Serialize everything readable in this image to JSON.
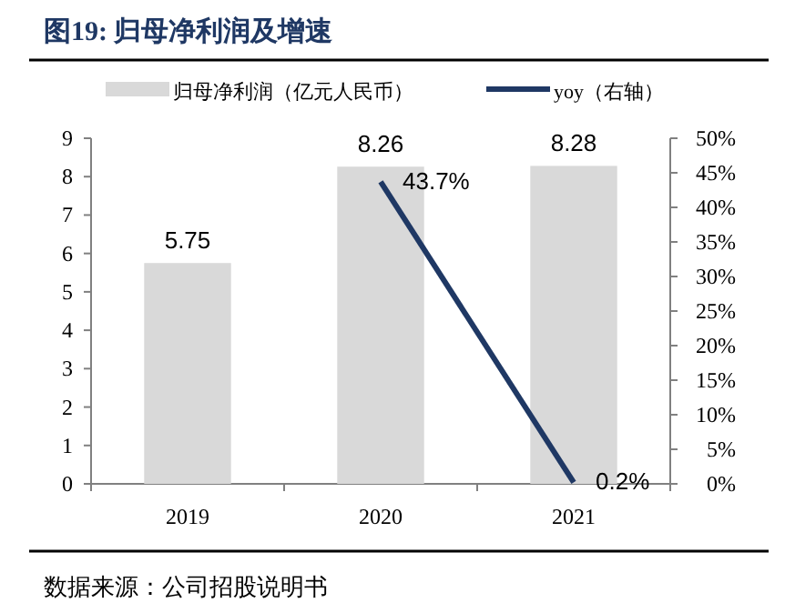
{
  "chart_data": {
    "type": "bar",
    "title": "图19:  归母净利润及增速",
    "categories": [
      "2019",
      "2020",
      "2021"
    ],
    "series": [
      {
        "name": "归母净利润（亿元人民币）",
        "color": "#d9d9d9",
        "values": [
          5.75,
          8.26,
          8.28
        ],
        "value_labels": [
          "5.75",
          "8.26",
          "8.28"
        ]
      },
      {
        "name": "yoy（右轴）",
        "type": "line",
        "axis": "y2",
        "color": "#1f3864",
        "values": [
          null,
          43.7,
          0.2
        ],
        "value_labels": [
          null,
          "43.7%",
          "0.2%"
        ]
      }
    ],
    "ylim": [
      0,
      9
    ],
    "yticks": [
      0,
      1,
      2,
      3,
      4,
      5,
      6,
      7,
      8,
      9
    ],
    "y2lim": [
      0,
      50
    ],
    "y2ticks": [
      {
        "value": 0,
        "label": "0%"
      },
      {
        "value": 5,
        "label": "5%"
      },
      {
        "value": 10,
        "label": "10%"
      },
      {
        "value": 15,
        "label": "15%"
      },
      {
        "value": 20,
        "label": "20%"
      },
      {
        "value": 25,
        "label": "25%"
      },
      {
        "value": 30,
        "label": "30%"
      },
      {
        "value": 35,
        "label": "35%"
      },
      {
        "value": 40,
        "label": "40%"
      },
      {
        "value": 45,
        "label": "45%"
      },
      {
        "value": 50,
        "label": "50%"
      }
    ],
    "legend": "top",
    "grid": false,
    "annotations": [
      "数据来源：公司招股说明书"
    ]
  }
}
